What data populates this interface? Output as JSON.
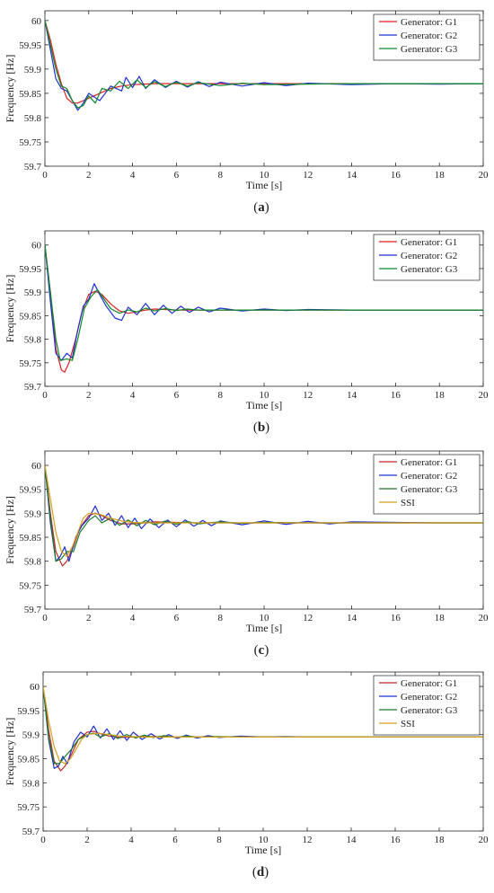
{
  "chart_data": [
    {
      "panel": "a",
      "type": "line",
      "xlabel": "Time [s]",
      "ylabel": "Frequency [Hz]",
      "xlim": [
        0,
        20
      ],
      "ylim": [
        59.7,
        60.02
      ],
      "xticks": [
        0,
        2,
        4,
        6,
        8,
        10,
        12,
        14,
        16,
        18,
        20
      ],
      "yticks": [
        59.7,
        59.75,
        59.8,
        59.85,
        59.9,
        59.95,
        60
      ],
      "ytick_labels": [
        "59.7",
        "59.75",
        "59.8",
        "59.85",
        "59.9",
        "59.95",
        "60"
      ],
      "legend_position": "top-right",
      "series": [
        {
          "name": "Generator: G1",
          "color": "#e02020",
          "x": [
            0,
            0.25,
            0.5,
            0.75,
            1,
            1.25,
            1.5,
            1.75,
            2,
            2.5,
            3,
            3.5,
            4,
            4.5,
            5,
            6,
            7,
            8,
            10,
            12,
            14,
            16,
            18,
            20
          ],
          "values": [
            60,
            59.96,
            59.91,
            59.87,
            59.84,
            59.83,
            59.83,
            59.835,
            59.84,
            59.85,
            59.86,
            59.865,
            59.868,
            59.869,
            59.87,
            59.87,
            59.87,
            59.87,
            59.87,
            59.87,
            59.87,
            59.87,
            59.87,
            59.87
          ]
        },
        {
          "name": "Generator: G2",
          "color": "#2030d0",
          "x": [
            0,
            0.25,
            0.5,
            0.75,
            1,
            1.25,
            1.5,
            1.75,
            2,
            2.5,
            3,
            3.5,
            3.7,
            4,
            4.3,
            4.6,
            5,
            5.5,
            6,
            6.5,
            7,
            7.5,
            8,
            9,
            10,
            11,
            12,
            14,
            16,
            18,
            20
          ],
          "values": [
            60,
            59.94,
            59.88,
            59.86,
            59.855,
            59.835,
            59.815,
            59.83,
            59.85,
            59.835,
            59.865,
            59.855,
            59.883,
            59.862,
            59.885,
            59.86,
            59.878,
            59.862,
            59.875,
            59.863,
            59.874,
            59.864,
            59.873,
            59.865,
            59.872,
            59.866,
            59.871,
            59.868,
            59.87,
            59.869,
            59.87
          ]
        },
        {
          "name": "Generator: G3",
          "color": "#108a2a",
          "x": [
            0,
            0.25,
            0.5,
            0.75,
            1,
            1.25,
            1.5,
            1.75,
            2,
            2.3,
            2.6,
            3,
            3.4,
            3.8,
            4.2,
            4.6,
            5,
            5.5,
            6,
            6.5,
            7,
            8,
            9,
            10,
            12,
            14,
            16,
            18,
            20
          ],
          "values": [
            60,
            59.95,
            59.9,
            59.865,
            59.86,
            59.835,
            59.82,
            59.825,
            59.845,
            59.83,
            59.86,
            59.855,
            59.875,
            59.86,
            59.878,
            59.862,
            59.874,
            59.864,
            59.873,
            59.865,
            59.872,
            59.866,
            59.871,
            59.868,
            59.869,
            59.87,
            59.87,
            59.87,
            59.87
          ]
        }
      ]
    },
    {
      "panel": "b",
      "type": "line",
      "xlabel": "Time [s]",
      "ylabel": "Frequency [Hz]",
      "xlim": [
        0,
        20
      ],
      "ylim": [
        59.7,
        60.03
      ],
      "xticks": [
        0,
        2,
        4,
        6,
        8,
        10,
        12,
        14,
        16,
        18,
        20
      ],
      "yticks": [
        59.7,
        59.75,
        59.8,
        59.85,
        59.9,
        59.95,
        60
      ],
      "ytick_labels": [
        "59.7",
        "59.75",
        "59.8",
        "59.85",
        "59.9",
        "59.95",
        "60"
      ],
      "legend_position": "top-right",
      "series": [
        {
          "name": "Generator: G1",
          "color": "#e02020",
          "x": [
            0,
            0.25,
            0.5,
            0.75,
            0.9,
            1.1,
            1.4,
            1.7,
            2,
            2.3,
            2.6,
            3,
            3.4,
            3.8,
            4.2,
            4.6,
            5,
            5.5,
            6,
            7,
            8,
            9,
            10,
            12,
            14,
            16,
            18,
            20
          ],
          "values": [
            60,
            59.9,
            59.78,
            59.735,
            59.73,
            59.75,
            59.8,
            59.86,
            59.895,
            59.902,
            59.895,
            59.875,
            59.86,
            59.855,
            59.858,
            59.862,
            59.864,
            59.863,
            59.862,
            59.862,
            59.862,
            59.862,
            59.862,
            59.862,
            59.862,
            59.862,
            59.862,
            59.862
          ]
        },
        {
          "name": "Generator: G2",
          "color": "#2030d0",
          "x": [
            0,
            0.25,
            0.5,
            0.75,
            1,
            1.25,
            1.5,
            1.75,
            2,
            2.25,
            2.5,
            2.8,
            3.2,
            3.5,
            3.8,
            4.2,
            4.6,
            5,
            5.4,
            5.8,
            6.2,
            6.6,
            7,
            7.5,
            8,
            9,
            10,
            11,
            12,
            14,
            16,
            18,
            20
          ],
          "values": [
            60,
            59.88,
            59.77,
            59.755,
            59.77,
            59.76,
            59.82,
            59.87,
            59.885,
            59.918,
            59.895,
            59.87,
            59.845,
            59.84,
            59.868,
            59.852,
            59.876,
            59.852,
            59.872,
            59.855,
            59.87,
            59.857,
            59.868,
            59.858,
            59.866,
            59.86,
            59.864,
            59.861,
            59.863,
            59.862,
            59.862,
            59.862,
            59.862
          ]
        },
        {
          "name": "Generator: G3",
          "color": "#108a2a",
          "x": [
            0,
            0.25,
            0.5,
            0.7,
            1,
            1.25,
            1.5,
            1.8,
            2.1,
            2.4,
            2.7,
            3,
            3.4,
            3.8,
            4.2,
            4.6,
            5,
            5.5,
            6,
            6.5,
            7,
            8,
            9,
            10,
            12,
            14,
            16,
            18,
            20
          ],
          "values": [
            60,
            59.9,
            59.8,
            59.755,
            59.758,
            59.755,
            59.8,
            59.865,
            59.89,
            59.905,
            59.885,
            59.865,
            59.855,
            59.862,
            59.858,
            59.866,
            59.86,
            59.865,
            59.861,
            59.864,
            59.862,
            59.862,
            59.862,
            59.862,
            59.862,
            59.862,
            59.862,
            59.862,
            59.862
          ]
        }
      ]
    },
    {
      "panel": "c",
      "type": "line",
      "xlabel": "Time [s]",
      "ylabel": "Frequency [Hz]",
      "xlim": [
        0,
        20
      ],
      "ylim": [
        59.7,
        60.03
      ],
      "xticks": [
        0,
        2,
        4,
        6,
        8,
        10,
        12,
        14,
        16,
        18,
        20
      ],
      "yticks": [
        59.7,
        59.75,
        59.8,
        59.85,
        59.9,
        59.95,
        60
      ],
      "ytick_labels": [
        "59.7",
        "59.75",
        "59.8",
        "59.85",
        "59.9",
        "59.95",
        "60"
      ],
      "legend_position": "top-right",
      "series": [
        {
          "name": "Generator: G1",
          "color": "#c02828",
          "x": [
            0,
            0.25,
            0.5,
            0.8,
            1,
            1.3,
            1.6,
            2,
            2.3,
            2.6,
            3,
            3.5,
            4,
            4.5,
            5,
            6,
            7,
            8,
            10,
            12,
            14,
            16,
            18,
            20
          ],
          "values": [
            60,
            59.9,
            59.82,
            59.79,
            59.8,
            59.83,
            59.87,
            59.895,
            59.9,
            59.895,
            59.885,
            59.878,
            59.878,
            59.88,
            59.882,
            59.881,
            59.88,
            59.88,
            59.88,
            59.88,
            59.88,
            59.88,
            59.88,
            59.88
          ]
        },
        {
          "name": "Generator: G2",
          "color": "#2030d0",
          "x": [
            0,
            0.25,
            0.5,
            0.7,
            0.9,
            1.1,
            1.4,
            1.7,
            2,
            2.3,
            2.6,
            2.9,
            3.2,
            3.5,
            3.8,
            4.1,
            4.4,
            4.8,
            5.2,
            5.6,
            6,
            6.4,
            6.8,
            7.2,
            7.6,
            8,
            9,
            10,
            11,
            12,
            13,
            14,
            16,
            18,
            20
          ],
          "values": [
            60,
            59.88,
            59.8,
            59.81,
            59.83,
            59.8,
            59.85,
            59.875,
            59.89,
            59.915,
            59.885,
            59.9,
            59.875,
            59.895,
            59.87,
            59.89,
            59.868,
            59.888,
            59.87,
            59.886,
            59.872,
            59.886,
            59.873,
            59.885,
            59.874,
            59.884,
            59.876,
            59.884,
            59.877,
            59.883,
            59.878,
            59.882,
            59.881,
            59.88,
            59.88
          ]
        },
        {
          "name": "Generator: G3",
          "color": "#1c7a2a",
          "x": [
            0,
            0.25,
            0.5,
            0.75,
            1,
            1.3,
            1.6,
            2,
            2.3,
            2.6,
            3,
            3.4,
            3.8,
            4.2,
            4.6,
            5,
            5.5,
            6,
            6.5,
            7,
            8,
            9,
            10,
            12,
            14,
            16,
            18,
            20
          ],
          "values": [
            60,
            59.89,
            59.8,
            59.805,
            59.82,
            59.82,
            59.86,
            59.885,
            59.895,
            59.88,
            59.89,
            59.875,
            59.886,
            59.874,
            59.885,
            59.876,
            59.884,
            59.877,
            59.883,
            59.878,
            59.882,
            59.879,
            59.881,
            59.88,
            59.88,
            59.88,
            59.88,
            59.88
          ]
        },
        {
          "name": "SSI",
          "color": "#d4a020",
          "x": [
            0,
            0.25,
            0.5,
            0.75,
            1,
            1.25,
            1.5,
            1.75,
            2,
            2.5,
            3,
            3.5,
            4,
            4.5,
            5,
            6,
            7,
            8,
            10,
            12,
            14,
            16,
            18,
            20
          ],
          "values": [
            60,
            59.93,
            59.86,
            59.82,
            59.81,
            59.83,
            59.86,
            59.89,
            59.9,
            59.898,
            59.89,
            59.884,
            59.881,
            59.88,
            59.88,
            59.88,
            59.88,
            59.88,
            59.88,
            59.88,
            59.88,
            59.88,
            59.88,
            59.88
          ]
        }
      ]
    },
    {
      "panel": "d",
      "type": "line",
      "xlabel": "Time [s]",
      "ylabel": "Frequency [Hz]",
      "xlim": [
        0,
        20
      ],
      "ylim": [
        59.7,
        60.03
      ],
      "xticks": [
        0,
        2,
        4,
        6,
        8,
        10,
        12,
        14,
        16,
        18,
        20
      ],
      "yticks": [
        59.7,
        59.75,
        59.8,
        59.85,
        59.9,
        59.95,
        60
      ],
      "ytick_labels": [
        "59.7",
        "59.75",
        "59.8",
        "59.85",
        "59.9",
        "59.95",
        "60"
      ],
      "legend_position": "top-right",
      "series": [
        {
          "name": "Generator: G1",
          "color": "#c02828",
          "x": [
            0,
            0.25,
            0.5,
            0.8,
            1,
            1.3,
            1.6,
            2,
            2.3,
            2.6,
            3,
            3.5,
            4,
            4.5,
            5,
            6,
            7,
            8,
            10,
            12,
            14,
            16,
            18,
            20
          ],
          "values": [
            60,
            59.91,
            59.845,
            59.825,
            59.835,
            59.86,
            59.89,
            59.905,
            59.907,
            59.902,
            59.897,
            59.894,
            59.895,
            59.896,
            59.896,
            59.895,
            59.895,
            59.895,
            59.895,
            59.895,
            59.895,
            59.895,
            59.895,
            59.895
          ]
        },
        {
          "name": "Generator: G2",
          "color": "#2030d0",
          "x": [
            0,
            0.25,
            0.5,
            0.7,
            0.9,
            1.1,
            1.4,
            1.7,
            2,
            2.3,
            2.6,
            2.9,
            3.2,
            3.5,
            3.8,
            4.1,
            4.5,
            4.9,
            5.3,
            5.7,
            6.1,
            6.5,
            7,
            7.5,
            8,
            9,
            10,
            11,
            12,
            14,
            16,
            18,
            20
          ],
          "values": [
            60,
            59.89,
            59.83,
            59.835,
            59.855,
            59.84,
            59.885,
            59.905,
            59.895,
            59.918,
            59.893,
            59.912,
            59.89,
            59.908,
            59.888,
            59.905,
            59.89,
            59.902,
            59.891,
            59.9,
            59.892,
            59.899,
            59.893,
            59.898,
            59.894,
            59.897,
            59.895,
            59.896,
            59.895,
            59.895,
            59.895,
            59.895,
            59.895
          ]
        },
        {
          "name": "Generator: G3",
          "color": "#1c7a2a",
          "x": [
            0,
            0.25,
            0.5,
            0.75,
            1,
            1.3,
            1.6,
            2,
            2.3,
            2.6,
            3,
            3.4,
            3.8,
            4.2,
            4.6,
            5,
            5.5,
            6,
            6.5,
            7,
            8,
            9,
            10,
            12,
            14,
            16,
            18,
            20
          ],
          "values": [
            60,
            59.895,
            59.84,
            59.84,
            59.855,
            59.87,
            59.89,
            59.9,
            59.903,
            59.895,
            59.902,
            59.892,
            59.9,
            59.893,
            59.899,
            59.894,
            59.898,
            59.894,
            59.897,
            59.895,
            59.896,
            59.895,
            59.895,
            59.895,
            59.895,
            59.895,
            59.895,
            59.895
          ]
        },
        {
          "name": "SSI",
          "color": "#d4a020",
          "x": [
            0,
            0.25,
            0.5,
            0.75,
            1,
            1.25,
            1.5,
            1.75,
            2,
            2.5,
            3,
            3.5,
            4,
            4.5,
            5,
            6,
            7,
            8,
            10,
            12,
            14,
            16,
            18,
            20
          ],
          "values": [
            60,
            59.93,
            59.875,
            59.845,
            59.84,
            59.85,
            59.87,
            59.89,
            59.9,
            59.903,
            59.9,
            59.897,
            59.896,
            59.895,
            59.895,
            59.895,
            59.895,
            59.895,
            59.895,
            59.895,
            59.895,
            59.895,
            59.895,
            59.895
          ]
        }
      ]
    }
  ],
  "captions": [
    "(a)",
    "(b)",
    "(c)",
    "(d)"
  ],
  "caption_letters": [
    "a",
    "b",
    "c",
    "d"
  ]
}
